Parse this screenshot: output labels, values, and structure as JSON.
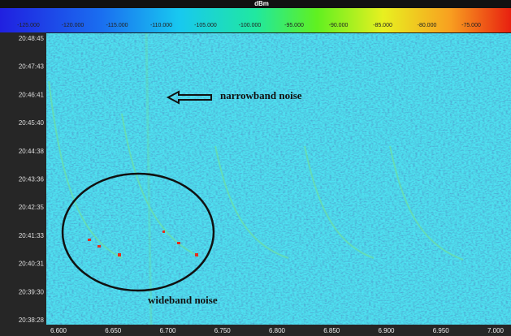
{
  "colorbar": {
    "title": "dBm",
    "ticks": [
      "-125.000",
      "-120.000",
      "-115.000",
      "-110.000",
      "-105.000",
      "-100.000",
      "-95.000",
      "-90.000",
      "-85.000",
      "-80.000",
      "-75.000"
    ]
  },
  "time_labels": [
    "20:48:45",
    "20:47:43",
    "20:46:41",
    "20:45:40",
    "20:44:38",
    "20:43:36",
    "20:42:35",
    "20:41:33",
    "20:40:31",
    "20:39:30",
    "20:38:28"
  ],
  "frequency_labels": [
    "6.600",
    "6.650",
    "6.700",
    "6.750",
    "6.800",
    "6.850",
    "6.900",
    "6.950",
    "7.000"
  ],
  "annotations": {
    "narrowband": "narrowband noise",
    "wideband": "wideband noise"
  }
}
